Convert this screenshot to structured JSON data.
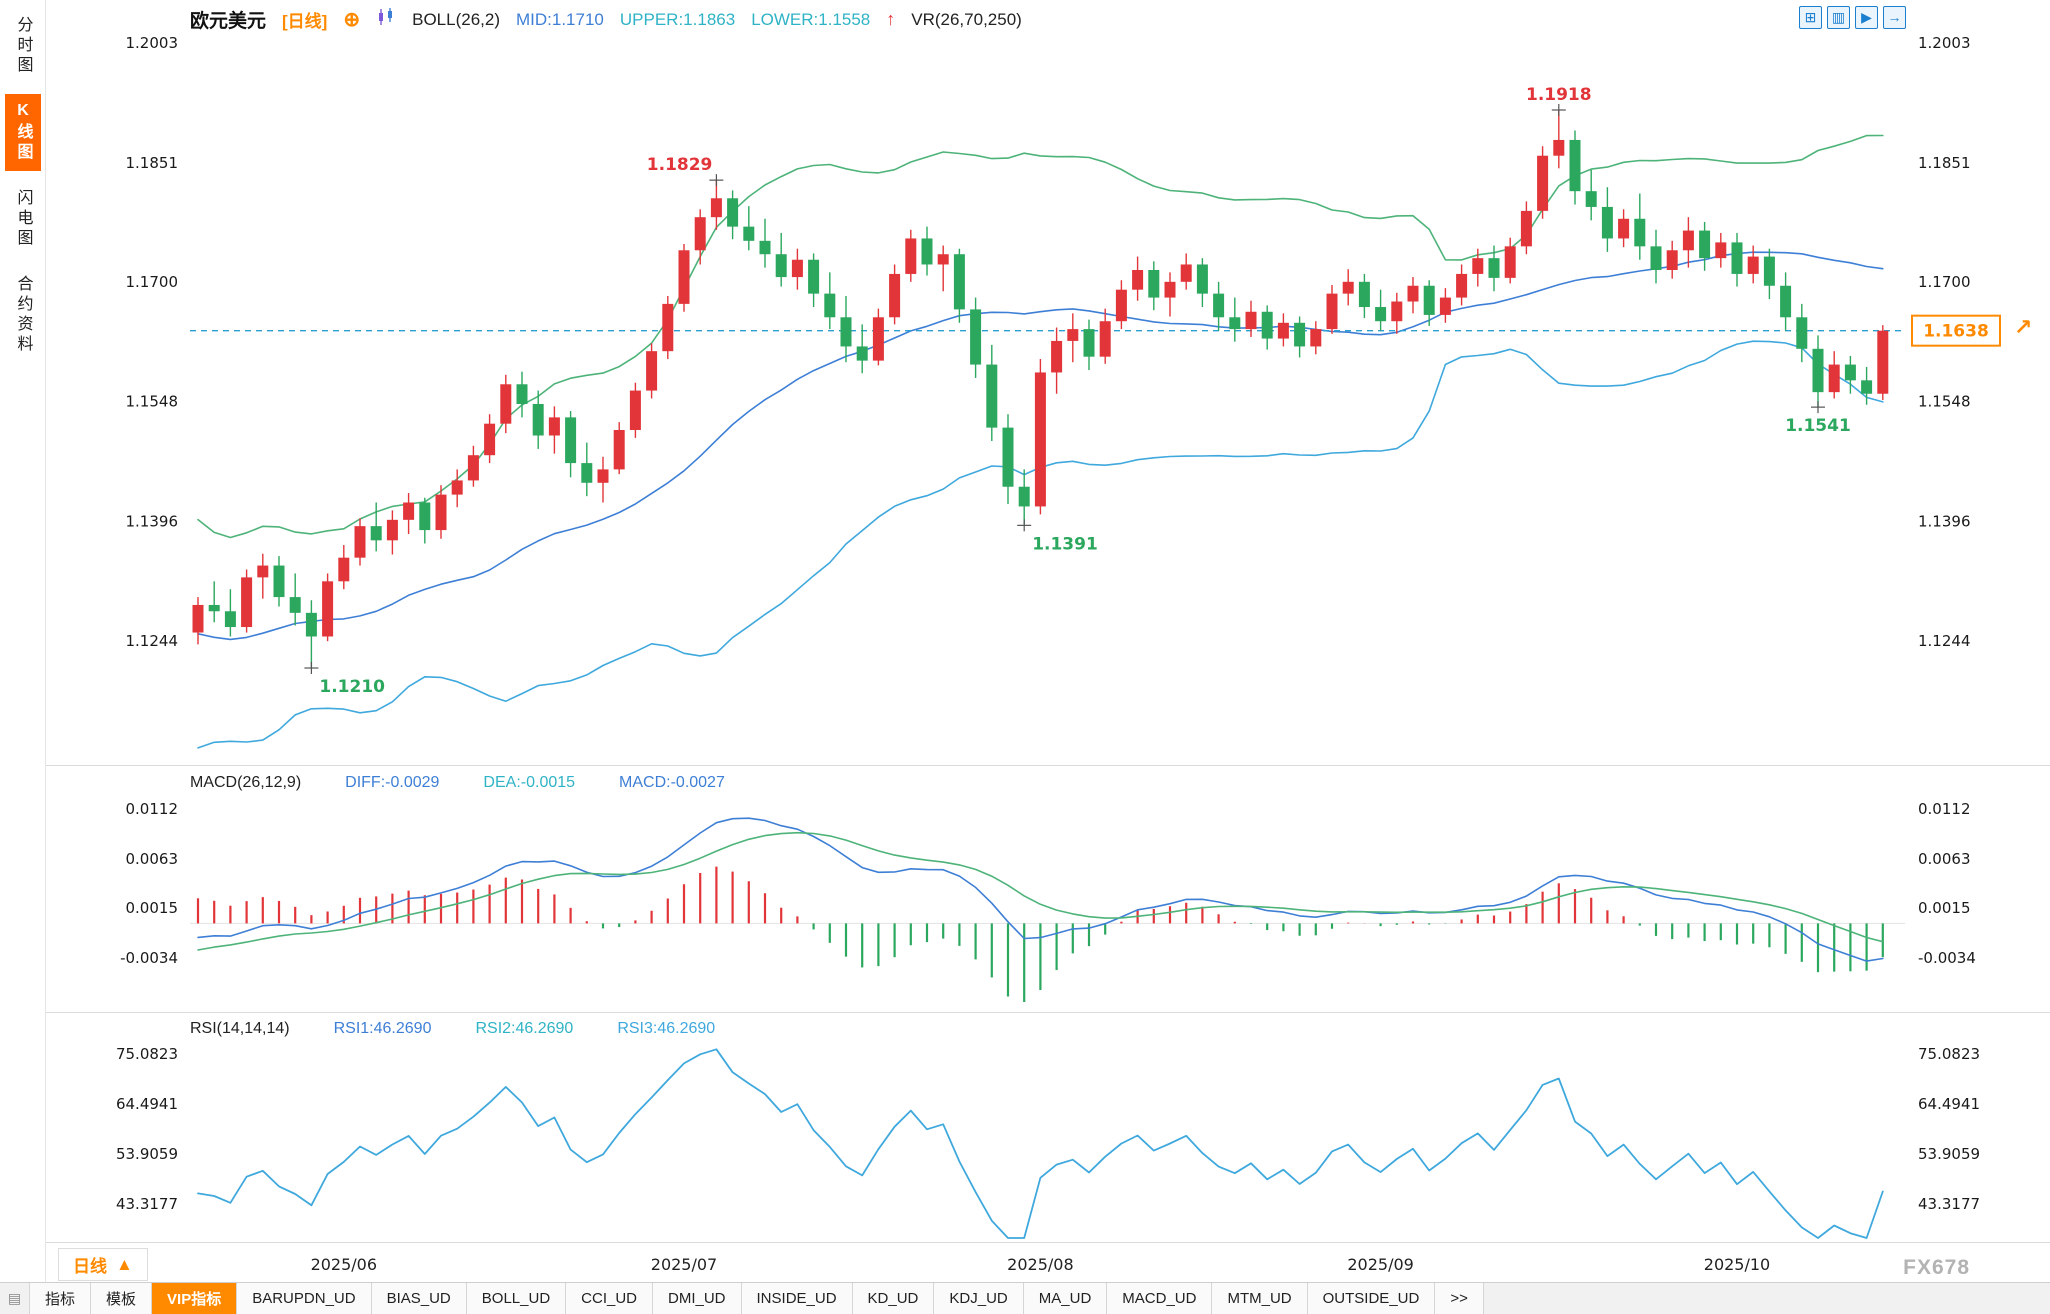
{
  "sidebar": {
    "items": [
      {
        "label": "分时图",
        "active": false
      },
      {
        "label": "K线图",
        "active": true
      },
      {
        "label": "闪电图",
        "active": false
      },
      {
        "label": "合约资料",
        "active": false
      }
    ]
  },
  "header": {
    "symbol": "欧元美元",
    "period_tag": "[日线]",
    "add_icon": "⊕",
    "boll_label": "BOLL(26,2)",
    "mid": "MID:1.1710",
    "upper": "UPPER:1.1863",
    "lower": "LOWER:1.1558",
    "arrow": "↑",
    "vr": "VR(26,70,250)",
    "icons": [
      {
        "name": "grid-layout-icon",
        "glyph": "⊞"
      },
      {
        "name": "multi-pane-icon",
        "glyph": "▥"
      },
      {
        "name": "play-chart-icon",
        "glyph": "▶"
      },
      {
        "name": "next-chart-icon",
        "glyph": "→"
      }
    ]
  },
  "macd_panel": {
    "title": "MACD(26,12,9)",
    "diff": "DIFF:-0.0029",
    "dea": "DEA:-0.0015",
    "macd": "MACD:-0.0027"
  },
  "rsi_panel": {
    "title": "RSI(14,14,14)",
    "rsi1": "RSI1:46.2690",
    "rsi2": "RSI2:46.2690",
    "rsi3": "RSI3:46.2690",
    "settings_icon": "☀"
  },
  "x_axis": {
    "period_label": "日线",
    "period_arrow": "▲"
  },
  "current_price": "1.1638",
  "watermark": "FX678",
  "toolbar": {
    "leading_icon": "▤",
    "tabs": [
      "指标",
      "模板",
      "VIP指标",
      "BARUPDN_UD",
      "BIAS_UD",
      "BOLL_UD",
      "CCI_UD",
      "DMI_UD",
      "INSIDE_UD",
      "KD_UD",
      "KDJ_UD",
      "MA_UD",
      "MACD_UD",
      "MTM_UD",
      "OUTSIDE_UD",
      ">>"
    ]
  },
  "colors": {
    "up": "#e23539",
    "down": "#2ba75e",
    "boll_mid": "#3e7fd6",
    "boll_upper": "#4db379",
    "boll_lower": "#3fa8dd",
    "dashed": "#2a9fd0",
    "orange": "#ff8a00",
    "macd_diff": "#3e7fd6",
    "macd_dea": "#4db379",
    "rsi": "#3fa8dd",
    "annotation_high": "#e23539",
    "annotation_low": "#2ba75e",
    "accent_blue": "#1b7fd0",
    "active_tab": "#ff8a00",
    "sidebar_active": "#ff6600"
  },
  "chart_data": {
    "type": "candlestick",
    "symbol": "欧元美元 (EUR/USD)",
    "period": "daily",
    "x_months": [
      "2025/06",
      "2025/07",
      "2025/08",
      "2025/09",
      "2025/10"
    ],
    "month_tick_indices": [
      9,
      30,
      52,
      73,
      95
    ],
    "price_ticks": [
      1.2003,
      1.1851,
      1.17,
      1.1548,
      1.1396,
      1.1244
    ],
    "macd_ticks": [
      0.0112,
      0.0063,
      0.0015,
      -0.0034
    ],
    "rsi_ticks": [
      75.0823,
      64.4941,
      53.9059,
      43.3177
    ],
    "last_close": 1.1638,
    "boll": {
      "period": 26,
      "mult": 2,
      "mid": 1.171,
      "upper": 1.1863,
      "lower": 1.1558
    },
    "macd": {
      "fast": 12,
      "slow": 26,
      "signal": 9,
      "diff": -0.0029,
      "dea": -0.0015,
      "macd": -0.0027
    },
    "rsi": {
      "period": 14,
      "rsi1": 46.269,
      "rsi2": 46.269,
      "rsi3": 46.269
    },
    "annotations": [
      {
        "text": "1.1210",
        "index": 7,
        "side": "below",
        "align": "start",
        "tone": "low"
      },
      {
        "text": "1.1829",
        "index": 32,
        "side": "above",
        "align": "end",
        "tone": "high"
      },
      {
        "text": "1.1391",
        "index": 51,
        "side": "below",
        "align": "start",
        "tone": "low"
      },
      {
        "text": "1.1918",
        "index": 84,
        "side": "above",
        "align": "middle",
        "tone": "high"
      },
      {
        "text": "1.1541",
        "index": 100,
        "side": "below",
        "align": "middle",
        "tone": "low"
      }
    ],
    "warmup_closes": [
      1.146,
      1.14,
      1.133,
      1.126,
      1.12,
      1.114,
      1.112,
      1.118,
      1.126,
      1.133,
      1.129,
      1.122,
      1.116,
      1.113,
      1.119,
      1.126,
      1.132,
      1.136,
      1.13,
      1.124,
      1.119,
      1.123,
      1.129,
      1.133,
      1.13,
      1.127
    ],
    "candles": [
      [
        1.1255,
        1.13,
        1.124,
        1.129
      ],
      [
        1.129,
        1.132,
        1.1268,
        1.1282
      ],
      [
        1.1282,
        1.131,
        1.125,
        1.1262
      ],
      [
        1.1262,
        1.1335,
        1.1255,
        1.1325
      ],
      [
        1.1325,
        1.1355,
        1.1298,
        1.134
      ],
      [
        1.134,
        1.1352,
        1.1288,
        1.13
      ],
      [
        1.13,
        1.133,
        1.1264,
        1.128
      ],
      [
        1.128,
        1.1296,
        1.121,
        1.125
      ],
      [
        1.125,
        1.133,
        1.1244,
        1.132
      ],
      [
        1.132,
        1.1366,
        1.131,
        1.135
      ],
      [
        1.135,
        1.14,
        1.134,
        1.139
      ],
      [
        1.139,
        1.142,
        1.1358,
        1.1372
      ],
      [
        1.1372,
        1.141,
        1.1354,
        1.1398
      ],
      [
        1.1398,
        1.1432,
        1.138,
        1.142
      ],
      [
        1.142,
        1.1426,
        1.1368,
        1.1385
      ],
      [
        1.1385,
        1.1442,
        1.1374,
        1.143
      ],
      [
        1.143,
        1.1462,
        1.1414,
        1.1448
      ],
      [
        1.1448,
        1.1492,
        1.144,
        1.148
      ],
      [
        1.148,
        1.1532,
        1.147,
        1.152
      ],
      [
        1.152,
        1.1582,
        1.1508,
        1.157
      ],
      [
        1.157,
        1.1586,
        1.1528,
        1.1545
      ],
      [
        1.1545,
        1.1562,
        1.1488,
        1.1505
      ],
      [
        1.1505,
        1.1542,
        1.1482,
        1.1528
      ],
      [
        1.1528,
        1.1536,
        1.1452,
        1.147
      ],
      [
        1.147,
        1.1496,
        1.1428,
        1.1445
      ],
      [
        1.1445,
        1.1478,
        1.142,
        1.1462
      ],
      [
        1.1462,
        1.1522,
        1.1456,
        1.1512
      ],
      [
        1.1512,
        1.1572,
        1.1502,
        1.1562
      ],
      [
        1.1562,
        1.1622,
        1.1552,
        1.1612
      ],
      [
        1.1612,
        1.1682,
        1.1602,
        1.1672
      ],
      [
        1.1672,
        1.1748,
        1.1662,
        1.174
      ],
      [
        1.174,
        1.1792,
        1.1722,
        1.1782
      ],
      [
        1.1782,
        1.1829,
        1.1766,
        1.1806
      ],
      [
        1.1806,
        1.1816,
        1.1754,
        1.177
      ],
      [
        1.177,
        1.1796,
        1.174,
        1.1752
      ],
      [
        1.1752,
        1.178,
        1.1718,
        1.1735
      ],
      [
        1.1735,
        1.1762,
        1.1694,
        1.1706
      ],
      [
        1.1706,
        1.1742,
        1.169,
        1.1728
      ],
      [
        1.1728,
        1.1736,
        1.1668,
        1.1685
      ],
      [
        1.1685,
        1.1712,
        1.164,
        1.1655
      ],
      [
        1.1655,
        1.1682,
        1.1598,
        1.1618
      ],
      [
        1.1618,
        1.1646,
        1.1584,
        1.16
      ],
      [
        1.16,
        1.1666,
        1.1594,
        1.1655
      ],
      [
        1.1655,
        1.1722,
        1.1646,
        1.171
      ],
      [
        1.171,
        1.1766,
        1.17,
        1.1755
      ],
      [
        1.1755,
        1.177,
        1.1708,
        1.1722
      ],
      [
        1.1722,
        1.1746,
        1.1688,
        1.1735
      ],
      [
        1.1735,
        1.1742,
        1.1648,
        1.1665
      ],
      [
        1.1665,
        1.168,
        1.1578,
        1.1595
      ],
      [
        1.1595,
        1.162,
        1.1498,
        1.1515
      ],
      [
        1.1515,
        1.1532,
        1.1418,
        1.144
      ],
      [
        1.144,
        1.1462,
        1.1391,
        1.1415
      ],
      [
        1.1415,
        1.1602,
        1.1405,
        1.1585
      ],
      [
        1.1585,
        1.1642,
        1.1558,
        1.1625
      ],
      [
        1.1625,
        1.166,
        1.1598,
        1.164
      ],
      [
        1.164,
        1.1652,
        1.1588,
        1.1605
      ],
      [
        1.1605,
        1.1666,
        1.1596,
        1.165
      ],
      [
        1.165,
        1.1702,
        1.164,
        1.169
      ],
      [
        1.169,
        1.1732,
        1.1676,
        1.1715
      ],
      [
        1.1715,
        1.1726,
        1.1664,
        1.168
      ],
      [
        1.168,
        1.1712,
        1.1656,
        1.17
      ],
      [
        1.17,
        1.1736,
        1.169,
        1.1722
      ],
      [
        1.1722,
        1.173,
        1.1668,
        1.1685
      ],
      [
        1.1685,
        1.17,
        1.1638,
        1.1655
      ],
      [
        1.1655,
        1.168,
        1.1624,
        1.164
      ],
      [
        1.164,
        1.1676,
        1.163,
        1.1662
      ],
      [
        1.1662,
        1.167,
        1.1614,
        1.1628
      ],
      [
        1.1628,
        1.166,
        1.1618,
        1.1648
      ],
      [
        1.1648,
        1.1656,
        1.1604,
        1.1618
      ],
      [
        1.1618,
        1.165,
        1.1608,
        1.164
      ],
      [
        1.164,
        1.1696,
        1.1634,
        1.1685
      ],
      [
        1.1685,
        1.1716,
        1.167,
        1.17
      ],
      [
        1.17,
        1.171,
        1.1654,
        1.1668
      ],
      [
        1.1668,
        1.169,
        1.1638,
        1.165
      ],
      [
        1.165,
        1.1686,
        1.1634,
        1.1675
      ],
      [
        1.1675,
        1.1706,
        1.166,
        1.1695
      ],
      [
        1.1695,
        1.1702,
        1.1644,
        1.1658
      ],
      [
        1.1658,
        1.1692,
        1.1648,
        1.168
      ],
      [
        1.168,
        1.1722,
        1.167,
        1.171
      ],
      [
        1.171,
        1.1742,
        1.1694,
        1.173
      ],
      [
        1.173,
        1.1746,
        1.1688,
        1.1705
      ],
      [
        1.1705,
        1.1756,
        1.1698,
        1.1745
      ],
      [
        1.1745,
        1.1802,
        1.1735,
        1.179
      ],
      [
        1.179,
        1.1872,
        1.178,
        1.186
      ],
      [
        1.186,
        1.1918,
        1.1844,
        1.188
      ],
      [
        1.188,
        1.1892,
        1.1798,
        1.1815
      ],
      [
        1.1815,
        1.1842,
        1.1778,
        1.1795
      ],
      [
        1.1795,
        1.182,
        1.1738,
        1.1755
      ],
      [
        1.1755,
        1.1792,
        1.1744,
        1.178
      ],
      [
        1.178,
        1.1812,
        1.1728,
        1.1745
      ],
      [
        1.1745,
        1.1766,
        1.1698,
        1.1715
      ],
      [
        1.1715,
        1.1752,
        1.1704,
        1.174
      ],
      [
        1.174,
        1.1782,
        1.1718,
        1.1765
      ],
      [
        1.1765,
        1.1776,
        1.1714,
        1.173
      ],
      [
        1.173,
        1.1762,
        1.1718,
        1.175
      ],
      [
        1.175,
        1.1762,
        1.1694,
        1.171
      ],
      [
        1.171,
        1.1746,
        1.1698,
        1.1732
      ],
      [
        1.1732,
        1.1742,
        1.1678,
        1.1695
      ],
      [
        1.1695,
        1.1712,
        1.1638,
        1.1655
      ],
      [
        1.1655,
        1.1672,
        1.1598,
        1.1615
      ],
      [
        1.1615,
        1.1632,
        1.1541,
        1.156
      ],
      [
        1.156,
        1.1612,
        1.1552,
        1.1595
      ],
      [
        1.1595,
        1.1606,
        1.1558,
        1.1575
      ],
      [
        1.1575,
        1.1592,
        1.1544,
        1.1558
      ],
      [
        1.1558,
        1.1645,
        1.155,
        1.1638
      ]
    ]
  }
}
